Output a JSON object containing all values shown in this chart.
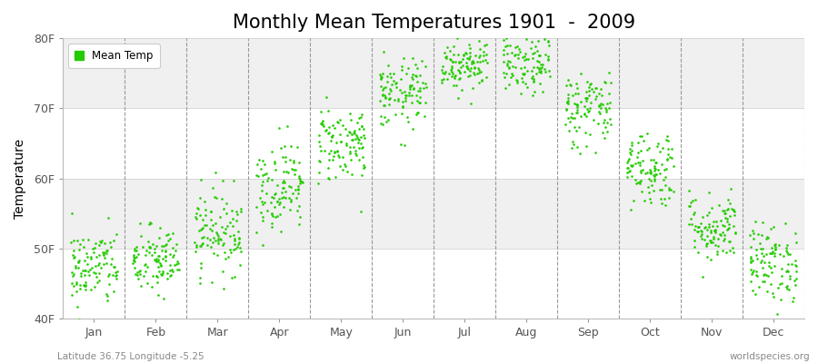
{
  "title": "Monthly Mean Temperatures 1901  -  2009",
  "ylabel": "Temperature",
  "xlabel_labels": [
    "Jan",
    "Feb",
    "Mar",
    "Apr",
    "May",
    "Jun",
    "Jul",
    "Aug",
    "Sep",
    "Oct",
    "Nov",
    "Dec"
  ],
  "ytick_labels": [
    "40F",
    "50F",
    "60F",
    "70F",
    "80F"
  ],
  "ytick_values": [
    40,
    50,
    60,
    70,
    80
  ],
  "ylim": [
    40,
    80
  ],
  "dot_color": "#22cc00",
  "background_color": "#ffffff",
  "plot_bg_color": "#ffffff",
  "band_color_light": "#f0f0f0",
  "band_color_white": "#ffffff",
  "grid_color": "#aaaaaa",
  "legend_label": "Mean Temp",
  "subtitle": "Latitude 36.75 Longitude -5.25",
  "watermark": "worldspecies.org",
  "title_fontsize": 15,
  "n_years": 109,
  "monthly_means_f": [
    47.3,
    48.2,
    52.5,
    59.0,
    65.0,
    72.0,
    76.5,
    76.2,
    70.0,
    61.5,
    53.0,
    48.0
  ],
  "monthly_stds_f": [
    2.8,
    2.5,
    3.0,
    3.2,
    2.8,
    2.5,
    2.0,
    2.2,
    2.8,
    2.8,
    2.5,
    2.8
  ]
}
